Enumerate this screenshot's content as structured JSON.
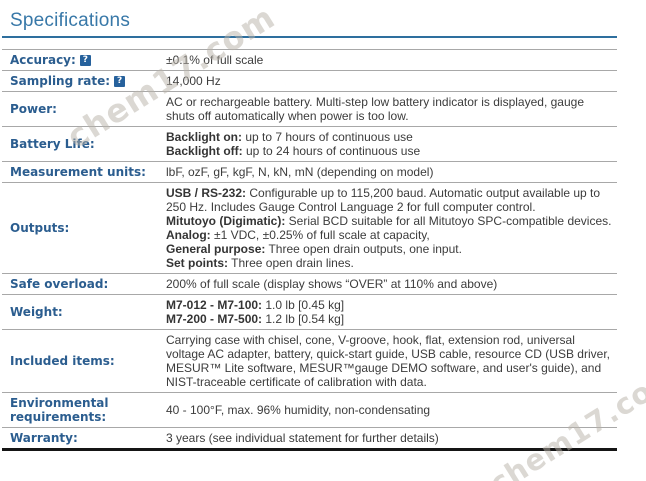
{
  "page": {
    "title": "Specifications",
    "help_icon": "?"
  },
  "colors": {
    "title_blue": "#3878a8",
    "rule_blue": "#2e6f9e",
    "label_blue": "#2b5d8f",
    "help_icon_bg": "#26619c",
    "row_divider": "#a8a8a8",
    "table_bottom": "#151515"
  },
  "watermarks": [
    {
      "text": "chem17.com",
      "position": "top-left"
    },
    {
      "text": "chem17.com",
      "position": "bottom-right"
    }
  ],
  "table": {
    "rows": [
      {
        "label": "Accuracy:",
        "help": true,
        "parts": [
          {
            "text": "±0.1% of full scale"
          }
        ]
      },
      {
        "label": "Sampling rate:",
        "help": true,
        "parts": [
          {
            "text": "14,000 Hz"
          }
        ]
      },
      {
        "label": "Power:",
        "parts": [
          {
            "text": "AC or rechargeable battery. Multi-step low battery indicator is displayed, gauge shuts off automatically when power is too low."
          }
        ]
      },
      {
        "label": "Battery Life:",
        "parts": [
          {
            "bold": "Backlight on:",
            "text": " up to 7 hours of continuous use"
          },
          {
            "bold": "Backlight off:",
            "text": " up to 24 hours of continuous use"
          }
        ]
      },
      {
        "label": "Measurement units:",
        "parts": [
          {
            "text": "lbF, ozF, gF, kgF, N, kN, mN (depending on model)"
          }
        ]
      },
      {
        "label": "Outputs:",
        "parts": [
          {
            "bold": "USB / RS-232:",
            "text": " Configurable up to 115,200 baud. Automatic output available up to 250 Hz. Includes Gauge Control Language 2 for full computer control."
          },
          {
            "bold": "Mitutoyo (Digimatic):",
            "text": " Serial BCD suitable for all Mitutoyo SPC-compatible devices."
          },
          {
            "bold": "Analog:",
            "text": " ±1 VDC, ±0.25% of full scale at capacity,"
          },
          {
            "bold": "General purpose:",
            "text": " Three open drain outputs, one input."
          },
          {
            "bold": "Set points:",
            "text": " Three open drain lines."
          }
        ]
      },
      {
        "label": "Safe overload:",
        "parts": [
          {
            "text": "200% of full scale (display shows “OVER” at 110% and above)"
          }
        ]
      },
      {
        "label": "Weight:",
        "parts": [
          {
            "bold": "M7-012 - M7-100:",
            "text": " 1.0 lb [0.45 kg]"
          },
          {
            "bold": "M7-200 - M7-500:",
            "text": " 1.2 lb [0.54 kg]"
          }
        ]
      },
      {
        "label": "Included items:",
        "parts": [
          {
            "text": "Carrying case with chisel, cone, V-groove, hook, flat, extension rod, universal voltage AC adapter, battery, quick-start guide, USB cable, resource CD (USB driver, MESUR™ Lite software, MESUR™gauge DEMO software, and user's guide), and NIST-traceable certificate of calibration with data."
          }
        ]
      },
      {
        "label": "Environmental requirements:",
        "parts": [
          {
            "text": "40 - 100°F, max. 96% humidity, non-condensating"
          }
        ]
      },
      {
        "label": "Warranty:",
        "parts": [
          {
            "text": "3 years (see individual statement for further details)"
          }
        ]
      }
    ]
  }
}
